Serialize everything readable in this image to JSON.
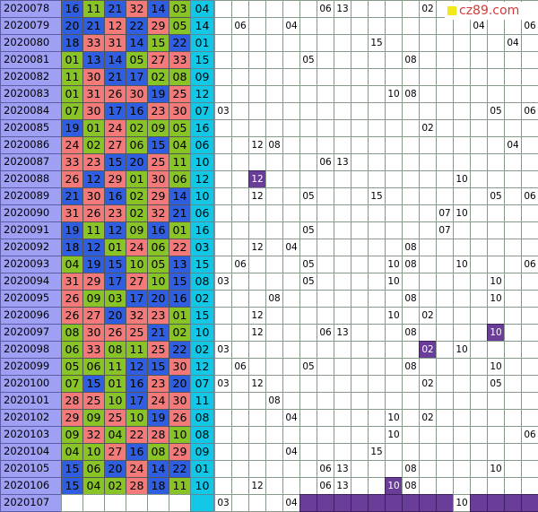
{
  "brand": {
    "label": "cz89.com",
    "square_color": "#f2e81a",
    "text_color": "#d43a3a"
  },
  "colors": {
    "blue": "#2f5fe0",
    "red": "#f47a7a",
    "green": "#88c425",
    "blue_ball": "#12c8e6",
    "issue": "#9f9ff4",
    "highlight": "#6a3d98"
  },
  "rows": [
    {
      "issue": "2020078",
      "balls": [
        [
          "16",
          "b"
        ],
        [
          "11",
          "g"
        ],
        [
          "21",
          "b"
        ],
        [
          "32",
          "r"
        ],
        [
          "14",
          "b"
        ],
        [
          "03",
          "g"
        ]
      ],
      "blue": "04",
      "marks": {
        "6": "06",
        "7": "13",
        "12": "02"
      }
    },
    {
      "issue": "2020079",
      "balls": [
        [
          "20",
          "b"
        ],
        [
          "21",
          "b"
        ],
        [
          "12",
          "r"
        ],
        [
          "22",
          "b"
        ],
        [
          "29",
          "r"
        ],
        [
          "05",
          "g"
        ]
      ],
      "blue": "14",
      "marks": {
        "1": "06",
        "4": "04",
        "15": "04",
        "18": "06"
      }
    },
    {
      "issue": "2020080",
      "balls": [
        [
          "18",
          "b"
        ],
        [
          "33",
          "r"
        ],
        [
          "31",
          "r"
        ],
        [
          "14",
          "b"
        ],
        [
          "15",
          "g"
        ],
        [
          "22",
          "b"
        ]
      ],
      "blue": "01",
      "marks": {
        "9": "15",
        "17": "04"
      }
    },
    {
      "issue": "2020081",
      "balls": [
        [
          "01",
          "g"
        ],
        [
          "13",
          "b"
        ],
        [
          "14",
          "b"
        ],
        [
          "05",
          "g"
        ],
        [
          "27",
          "r"
        ],
        [
          "33",
          "r"
        ]
      ],
      "blue": "15",
      "marks": {
        "5": "05",
        "11": "08"
      }
    },
    {
      "issue": "2020082",
      "balls": [
        [
          "11",
          "g"
        ],
        [
          "30",
          "r"
        ],
        [
          "21",
          "b"
        ],
        [
          "17",
          "b"
        ],
        [
          "02",
          "g"
        ],
        [
          "08",
          "g"
        ]
      ],
      "blue": "09",
      "marks": {}
    },
    {
      "issue": "2020083",
      "balls": [
        [
          "01",
          "g"
        ],
        [
          "31",
          "r"
        ],
        [
          "26",
          "r"
        ],
        [
          "30",
          "r"
        ],
        [
          "19",
          "b"
        ],
        [
          "25",
          "r"
        ]
      ],
      "blue": "12",
      "marks": {
        "10": "10",
        "11": "08"
      }
    },
    {
      "issue": "2020084",
      "balls": [
        [
          "07",
          "g"
        ],
        [
          "30",
          "r"
        ],
        [
          "17",
          "b"
        ],
        [
          "16",
          "b"
        ],
        [
          "23",
          "r"
        ],
        [
          "30",
          "r"
        ]
      ],
      "blue": "07",
      "marks": {
        "0": "03",
        "16": "05",
        "18": "06"
      }
    },
    {
      "issue": "2020085",
      "balls": [
        [
          "19",
          "b"
        ],
        [
          "01",
          "g"
        ],
        [
          "24",
          "r"
        ],
        [
          "02",
          "g"
        ],
        [
          "09",
          "g"
        ],
        [
          "05",
          "g"
        ]
      ],
      "blue": "16",
      "marks": {
        "12": "02"
      }
    },
    {
      "issue": "2020086",
      "balls": [
        [
          "24",
          "r"
        ],
        [
          "02",
          "g"
        ],
        [
          "27",
          "r"
        ],
        [
          "06",
          "g"
        ],
        [
          "15",
          "b"
        ],
        [
          "04",
          "g"
        ]
      ],
      "blue": "06",
      "marks": {
        "2": "12",
        "3": "08",
        "17": "04"
      }
    },
    {
      "issue": "2020087",
      "balls": [
        [
          "33",
          "r"
        ],
        [
          "23",
          "r"
        ],
        [
          "15",
          "b"
        ],
        [
          "20",
          "b"
        ],
        [
          "25",
          "r"
        ],
        [
          "11",
          "g"
        ]
      ],
      "blue": "10",
      "marks": {
        "6": "06",
        "7": "13"
      }
    },
    {
      "issue": "2020088",
      "balls": [
        [
          "26",
          "r"
        ],
        [
          "12",
          "b"
        ],
        [
          "29",
          "r"
        ],
        [
          "01",
          "g"
        ],
        [
          "30",
          "r"
        ],
        [
          "06",
          "g"
        ]
      ],
      "blue": "12",
      "marks": {
        "2": "*12",
        "14": "10"
      }
    },
    {
      "issue": "2020089",
      "balls": [
        [
          "21",
          "b"
        ],
        [
          "30",
          "r"
        ],
        [
          "16",
          "b"
        ],
        [
          "02",
          "g"
        ],
        [
          "29",
          "r"
        ],
        [
          "14",
          "b"
        ]
      ],
      "blue": "10",
      "marks": {
        "2": "12",
        "5": "05",
        "9": "15",
        "16": "05",
        "18": "06"
      }
    },
    {
      "issue": "2020090",
      "balls": [
        [
          "31",
          "r"
        ],
        [
          "26",
          "r"
        ],
        [
          "23",
          "r"
        ],
        [
          "02",
          "g"
        ],
        [
          "32",
          "r"
        ],
        [
          "21",
          "b"
        ]
      ],
      "blue": "06",
      "marks": {
        "13": "07",
        "14": "10"
      }
    },
    {
      "issue": "2020091",
      "balls": [
        [
          "19",
          "b"
        ],
        [
          "11",
          "g"
        ],
        [
          "12",
          "b"
        ],
        [
          "09",
          "g"
        ],
        [
          "16",
          "b"
        ],
        [
          "01",
          "g"
        ]
      ],
      "blue": "16",
      "marks": {
        "5": "05",
        "13": "07"
      }
    },
    {
      "issue": "2020092",
      "balls": [
        [
          "18",
          "b"
        ],
        [
          "12",
          "b"
        ],
        [
          "01",
          "g"
        ],
        [
          "24",
          "r"
        ],
        [
          "06",
          "g"
        ],
        [
          "22",
          "r"
        ]
      ],
      "blue": "03",
      "marks": {
        "2": "12",
        "4": "04",
        "11": "08"
      }
    },
    {
      "issue": "2020093",
      "balls": [
        [
          "04",
          "g"
        ],
        [
          "19",
          "b"
        ],
        [
          "15",
          "b"
        ],
        [
          "10",
          "g"
        ],
        [
          "05",
          "g"
        ],
        [
          "13",
          "b"
        ]
      ],
      "blue": "15",
      "marks": {
        "1": "06",
        "5": "05",
        "10": "10",
        "11": "08",
        "14": "10",
        "18": "06"
      }
    },
    {
      "issue": "2020094",
      "balls": [
        [
          "31",
          "r"
        ],
        [
          "29",
          "r"
        ],
        [
          "17",
          "b"
        ],
        [
          "27",
          "r"
        ],
        [
          "10",
          "g"
        ],
        [
          "15",
          "b"
        ]
      ],
      "blue": "08",
      "marks": {
        "0": "03",
        "5": "05",
        "10": "10",
        "16": "10"
      }
    },
    {
      "issue": "2020095",
      "balls": [
        [
          "26",
          "r"
        ],
        [
          "09",
          "g"
        ],
        [
          "03",
          "g"
        ],
        [
          "17",
          "b"
        ],
        [
          "20",
          "b"
        ],
        [
          "16",
          "b"
        ]
      ],
      "blue": "02",
      "marks": {
        "3": "08",
        "11": "08",
        "16": "10"
      }
    },
    {
      "issue": "2020096",
      "balls": [
        [
          "26",
          "r"
        ],
        [
          "27",
          "r"
        ],
        [
          "20",
          "b"
        ],
        [
          "32",
          "r"
        ],
        [
          "23",
          "r"
        ],
        [
          "01",
          "g"
        ]
      ],
      "blue": "15",
      "marks": {
        "2": "12",
        "10": "10",
        "12": "02"
      }
    },
    {
      "issue": "2020097",
      "balls": [
        [
          "08",
          "g"
        ],
        [
          "30",
          "r"
        ],
        [
          "26",
          "r"
        ],
        [
          "25",
          "r"
        ],
        [
          "21",
          "b"
        ],
        [
          "02",
          "g"
        ]
      ],
      "blue": "10",
      "marks": {
        "2": "12",
        "6": "06",
        "7": "13",
        "11": "08",
        "16": "*10"
      }
    },
    {
      "issue": "2020098",
      "balls": [
        [
          "06",
          "g"
        ],
        [
          "33",
          "r"
        ],
        [
          "08",
          "g"
        ],
        [
          "11",
          "g"
        ],
        [
          "25",
          "r"
        ],
        [
          "22",
          "b"
        ]
      ],
      "blue": "02",
      "marks": {
        "0": "03",
        "12": "*02",
        "14": "10"
      }
    },
    {
      "issue": "2020099",
      "balls": [
        [
          "05",
          "g"
        ],
        [
          "06",
          "g"
        ],
        [
          "11",
          "g"
        ],
        [
          "12",
          "b"
        ],
        [
          "15",
          "b"
        ],
        [
          "30",
          "r"
        ]
      ],
      "blue": "12",
      "marks": {
        "1": "06",
        "5": "05",
        "11": "08",
        "16": "10"
      }
    },
    {
      "issue": "2020100",
      "balls": [
        [
          "07",
          "g"
        ],
        [
          "15",
          "b"
        ],
        [
          "01",
          "g"
        ],
        [
          "16",
          "b"
        ],
        [
          "23",
          "r"
        ],
        [
          "20",
          "b"
        ]
      ],
      "blue": "07",
      "marks": {
        "0": "03",
        "2": "12",
        "12": "02",
        "16": "05"
      }
    },
    {
      "issue": "2020101",
      "balls": [
        [
          "28",
          "r"
        ],
        [
          "25",
          "r"
        ],
        [
          "10",
          "g"
        ],
        [
          "17",
          "b"
        ],
        [
          "24",
          "r"
        ],
        [
          "30",
          "r"
        ]
      ],
      "blue": "11",
      "marks": {
        "3": "08"
      }
    },
    {
      "issue": "2020102",
      "balls": [
        [
          "29",
          "r"
        ],
        [
          "09",
          "g"
        ],
        [
          "25",
          "r"
        ],
        [
          "10",
          "g"
        ],
        [
          "19",
          "b"
        ],
        [
          "26",
          "r"
        ]
      ],
      "blue": "08",
      "marks": {
        "4": "04",
        "10": "10",
        "12": "02"
      }
    },
    {
      "issue": "2020103",
      "balls": [
        [
          "09",
          "g"
        ],
        [
          "32",
          "r"
        ],
        [
          "04",
          "g"
        ],
        [
          "22",
          "r"
        ],
        [
          "28",
          "r"
        ],
        [
          "10",
          "g"
        ]
      ],
      "blue": "08",
      "marks": {
        "10": "10",
        "18": "06"
      }
    },
    {
      "issue": "2020104",
      "balls": [
        [
          "04",
          "g"
        ],
        [
          "10",
          "g"
        ],
        [
          "27",
          "r"
        ],
        [
          "16",
          "b"
        ],
        [
          "08",
          "g"
        ],
        [
          "29",
          "r"
        ]
      ],
      "blue": "09",
      "marks": {
        "4": "04",
        "9": "15"
      }
    },
    {
      "issue": "2020105",
      "balls": [
        [
          "15",
          "b"
        ],
        [
          "06",
          "g"
        ],
        [
          "20",
          "b"
        ],
        [
          "24",
          "r"
        ],
        [
          "14",
          "b"
        ],
        [
          "22",
          "b"
        ]
      ],
      "blue": "01",
      "marks": {
        "6": "06",
        "7": "13",
        "11": "08",
        "16": "10"
      }
    },
    {
      "issue": "2020106",
      "balls": [
        [
          "15",
          "b"
        ],
        [
          "04",
          "g"
        ],
        [
          "02",
          "g"
        ],
        [
          "28",
          "r"
        ],
        [
          "18",
          "b"
        ],
        [
          "11",
          "g"
        ]
      ],
      "blue": "10",
      "marks": {
        "2": "12",
        "6": "06",
        "7": "13",
        "10": "*10",
        "11": "08"
      }
    }
  ],
  "last_row": {
    "issue": "2020107",
    "marks": {
      "0": "03",
      "4": "04",
      "14": "10"
    },
    "filled": [
      5,
      6,
      7,
      8,
      9,
      10,
      11,
      12,
      13,
      15,
      16,
      17,
      18
    ]
  }
}
